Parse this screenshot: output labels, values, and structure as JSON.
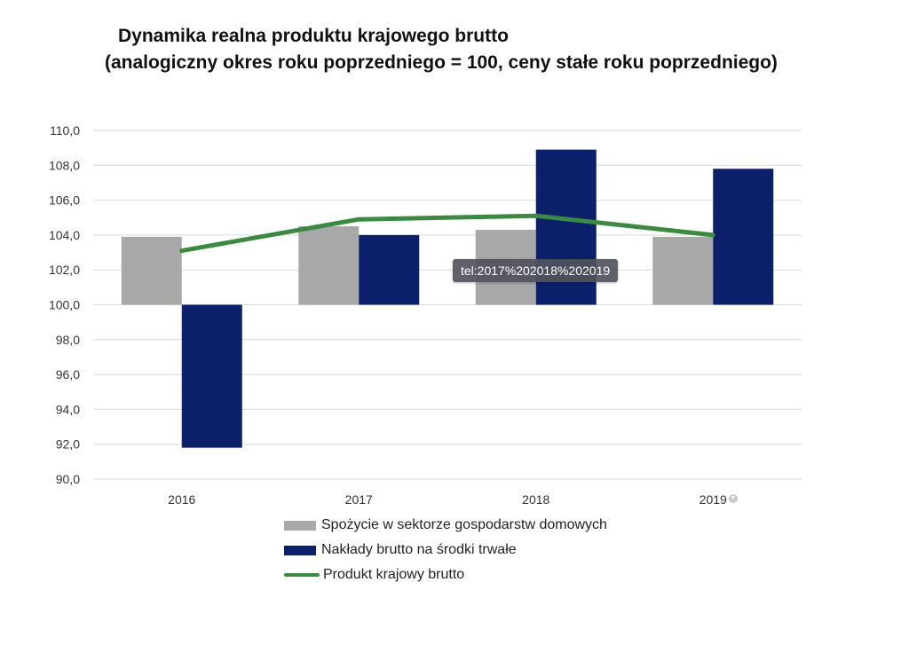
{
  "title": {
    "line1": "Dynamika realna produktu krajowego brutto",
    "line2": "(analogiczny okres roku poprzedniego = 100, ceny stałe roku poprzedniego)"
  },
  "tooltip": "tel:2017%202018%202019",
  "colors": {
    "consumption": "#a8a8a8",
    "investment": "#0b1f6b",
    "gdp": "#3a8a3f",
    "grid": "#d9d9d9"
  },
  "chart_data": {
    "type": "bar",
    "categories": [
      "2016",
      "2017",
      "2018",
      "2019"
    ],
    "series": [
      {
        "name": "Spożycie w sektorze gospodarstw domowych",
        "kind": "bar",
        "values": [
          103.9,
          104.5,
          104.3,
          103.9
        ]
      },
      {
        "name": "Nakłady brutto na środki trwałe",
        "kind": "bar",
        "values": [
          91.8,
          104.0,
          108.9,
          107.8
        ]
      },
      {
        "name": "Produkt krajowy brutto",
        "kind": "line",
        "values": [
          103.1,
          104.9,
          105.1,
          104.0
        ]
      }
    ],
    "ylim": [
      90,
      110
    ],
    "ytick_step": 2,
    "baseline": 100,
    "ytick_labels": [
      "90,0",
      "92,0",
      "94,0",
      "96,0",
      "98,0",
      "100,0",
      "102,0",
      "104,0",
      "106,0",
      "108,0",
      "110,0"
    ],
    "grid": true,
    "legend_position": "bottom"
  }
}
